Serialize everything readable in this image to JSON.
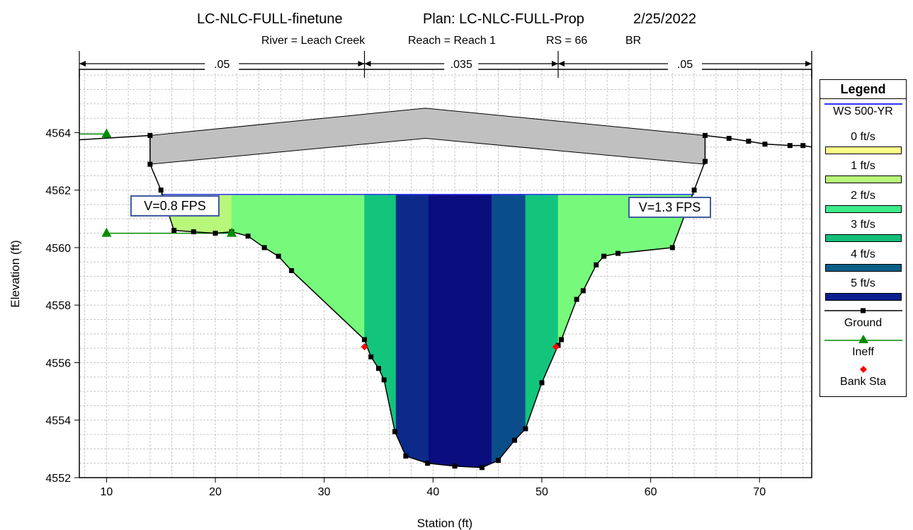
{
  "header": {
    "title_left": "LC-NLC-FULL-finetune",
    "title_plan": "Plan: LC-NLC-FULL-Prop",
    "title_date": "2/25/2022",
    "river": "River = Leach Creek",
    "reach": "Reach = Reach 1",
    "rs": "RS = 66",
    "br": "BR"
  },
  "annotations": {
    "left_velocity": "V=0.8 FPS",
    "right_velocity": "V=1.3 FPS"
  },
  "mannings": [
    {
      "label": ".05",
      "from": 7.5,
      "to": 33.7
    },
    {
      "label": ".035",
      "from": 33.7,
      "to": 51.5
    },
    {
      "label": ".05",
      "from": 51.5,
      "to": 74.8
    }
  ],
  "legend": {
    "title": "Legend",
    "items": [
      {
        "label": "WS 500-YR",
        "kind": "line",
        "color": "#3232ff"
      },
      {
        "label": "0 ft/s",
        "kind": "swatch",
        "color": "#fdfd88"
      },
      {
        "label": "1 ft/s",
        "kind": "swatch",
        "color": "#b9f77a"
      },
      {
        "label": "2 ft/s",
        "kind": "swatch",
        "color": "#3dec8b"
      },
      {
        "label": "3 ft/s",
        "kind": "swatch",
        "color": "#13bd7a"
      },
      {
        "label": "4 ft/s",
        "kind": "swatch",
        "color": "#0b5e86"
      },
      {
        "label": "5 ft/s",
        "kind": "swatch",
        "color": "#0b1e8e"
      },
      {
        "label": "Ground",
        "kind": "ground",
        "color": "#000000"
      },
      {
        "label": "Ineff",
        "kind": "ineff",
        "color": "#008c00"
      },
      {
        "label": "Bank Sta",
        "kind": "bank",
        "color": "#ff0000"
      }
    ]
  },
  "chart_data": {
    "type": "area",
    "xlabel": "Station (ft)",
    "ylabel": "Elevation (ft)",
    "xlim": [
      7.5,
      74.8
    ],
    "ylim": [
      4552,
      4566.2
    ],
    "xticks": [
      10,
      20,
      30,
      40,
      50,
      60,
      70
    ],
    "yticks": [
      4552,
      4554,
      4556,
      4558,
      4560,
      4562,
      4564
    ],
    "grid": true,
    "legend_position": "right",
    "water_surface": {
      "name": "WS 500-YR",
      "elevation": 4561.85
    },
    "ground": {
      "name": "Ground",
      "x": [
        7.5,
        14.0,
        14.0,
        15.0,
        16.2,
        18.0,
        20.0,
        21.5,
        23.0,
        24.5,
        25.8,
        27.0,
        33.7,
        34.3,
        35.0,
        35.5,
        36.5,
        37.5,
        39.5,
        42.0,
        44.5,
        46.0,
        47.5,
        48.5,
        50.0,
        51.5,
        51.8,
        53.2,
        53.8,
        55.0,
        55.7,
        57.0,
        62.0,
        64.0,
        65.0,
        65.0,
        67.2,
        69.0,
        70.5,
        72.8,
        74.0,
        74.8
      ],
      "y": [
        4563.75,
        4563.9,
        4562.9,
        4562.0,
        4560.6,
        4560.55,
        4560.5,
        4560.55,
        4560.4,
        4560.0,
        4559.7,
        4559.2,
        4556.8,
        4556.2,
        4555.8,
        4555.4,
        4553.6,
        4552.75,
        4552.5,
        4552.4,
        4552.35,
        4552.6,
        4553.3,
        4553.7,
        4555.3,
        4556.6,
        4556.8,
        4558.2,
        4558.5,
        4559.4,
        4559.7,
        4559.8,
        4560.0,
        4562.0,
        4563.0,
        4563.9,
        4563.8,
        4563.7,
        4563.6,
        4563.55,
        4563.55,
        4563.5
      ]
    },
    "bridge_deck": {
      "stations": [
        14.0,
        39.3,
        65.0
      ],
      "high_chord": [
        4563.9,
        4564.85,
        4563.9
      ],
      "low_chord": [
        4562.9,
        4563.8,
        4562.9
      ]
    },
    "ineffective_flow": [
      {
        "name": "Ineff",
        "x": [
          7.5,
          10.0
        ],
        "y": [
          4563.95,
          4563.95
        ]
      },
      {
        "name": "Ineff",
        "x": [
          10.0,
          21.5
        ],
        "y": [
          4560.5,
          4560.5
        ]
      }
    ],
    "ineff_markers": [
      {
        "x": 10.0,
        "y": 4563.95
      },
      {
        "x": 10.0,
        "y": 4560.5
      },
      {
        "x": 21.5,
        "y": 4560.5
      }
    ],
    "bank_stations": [
      {
        "name": "Bank Sta",
        "x": 33.7,
        "y": 4556.55
      },
      {
        "name": "Bank Sta",
        "x": 51.3,
        "y": 4556.55
      }
    ],
    "velocity_bands": [
      {
        "from": 15.0,
        "to": 21.5,
        "velocity": 0.8,
        "color": "#b9f77a"
      },
      {
        "from": 21.5,
        "to": 33.7,
        "velocity": 1.5,
        "color": "#77fa7b"
      },
      {
        "from": 33.7,
        "to": 36.6,
        "velocity": 2.5,
        "color": "#13c57c"
      },
      {
        "from": 36.6,
        "to": 39.6,
        "velocity": 4.5,
        "color": "#0c2a8a"
      },
      {
        "from": 39.6,
        "to": 45.4,
        "velocity": 5.2,
        "color": "#0a0d7e"
      },
      {
        "from": 45.4,
        "to": 48.5,
        "velocity": 3.8,
        "color": "#0b4d8a"
      },
      {
        "from": 48.5,
        "to": 51.5,
        "velocity": 2.5,
        "color": "#13c57c"
      },
      {
        "from": 51.5,
        "to": 64.0,
        "velocity": 1.3,
        "color": "#77fa7b"
      }
    ]
  }
}
